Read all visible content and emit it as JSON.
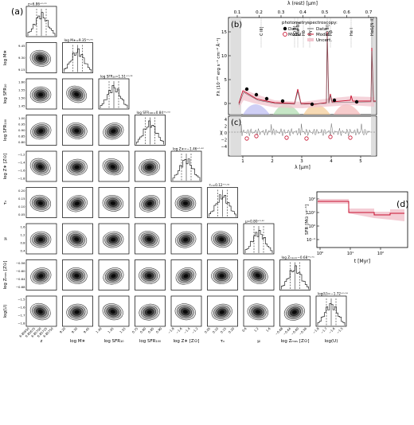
{
  "figure": {
    "corner": {
      "panel_label": "(a)",
      "params": [
        "z",
        "log M∗",
        "log SFR₁₀",
        "log SFR₁₀₀",
        "log Z∗ [Z⊙]",
        "τᵥ",
        "μ",
        "log Zₘₐₛ [Z⊙]",
        "log(U)"
      ],
      "diag_titles": [
        "z=6.86⁺⁰·⁰⁰",
        "log M∗=9.35⁺⁰·⁰⁵",
        "log SFR₁₀=1.51⁺⁰·⁰³",
        "log SFR₁₀₀=0.84⁺⁰·⁰³",
        "log Z∗=−1.46⁺⁰·¹⁰",
        "τᵥ=0.12⁺⁰·⁰²",
        "μ=0.80⁺⁰·¹⁰",
        "log Zₘₐₛ=−0.68⁺⁰·⁰¹",
        "log(U)=−1.72⁺⁰·⁰⁴"
      ],
      "bottom_ticks": [
        [
          "6.85650",
          "6.85675",
          "6.85700",
          "6.85725",
          "6.85750"
        ],
        [
          "9.20",
          "9.30",
          "9.45"
        ],
        [
          "1.40",
          "1.45",
          "1.55"
        ],
        [
          "0.75",
          "0.80",
          "0.85",
          "0.90"
        ],
        [
          "−1.8",
          "−1.6",
          "−1.4",
          "−1.2"
        ],
        [
          "0.05",
          "0.10",
          "0.15",
          "0.20"
        ],
        [
          "0.6",
          "1.2",
          "1.6"
        ],
        [
          "−0.68",
          "−0.64",
          "−0.60",
          "−0.56"
        ],
        [
          "−1.8",
          "−1.7",
          "−1.6",
          "−1.5"
        ]
      ],
      "left_ticks": [
        [],
        [
          "9.45",
          "9.30",
          "9.15"
        ],
        [
          "1.60",
          "1.55",
          "1.50",
          "1.45"
        ],
        [
          "1.00",
          "0.95",
          "0.90",
          "0.85",
          "0.80"
        ],
        [
          "−1.2",
          "−1.4",
          "−1.6",
          "−1.8"
        ],
        [
          "0.20",
          "0.15",
          "0.10",
          "0.05"
        ],
        [
          "1.6",
          "1.2",
          "0.8",
          "0.4"
        ],
        [
          "−0.56",
          "−0.60",
          "−0.64",
          "−0.68"
        ],
        [
          "−1.5",
          "−1.6",
          "−1.7",
          "−1.8"
        ]
      ]
    },
    "sed": {
      "panel_label": "(b)",
      "top_axis_label": "λ (rest) [μm]",
      "top_ticks": [
        "0.1",
        "0.2",
        "0.3",
        "0.4",
        "0.5",
        "0.6",
        "0.7"
      ],
      "ylabel": "Fλ (10⁻²⁰ erg s⁻¹ cm⁻² Å⁻¹)",
      "yticks": [
        "15",
        "10",
        "5",
        "0"
      ],
      "lines": [
        "C III]",
        "[O II]",
        "[Ne III]",
        "Hδ",
        "Hγ",
        "[O III]",
        "Hβ",
        "He I",
        "Hα&[N II]"
      ],
      "legend": {
        "photometry_title": "photometry:",
        "photometry_items": [
          "Data",
          "Model"
        ],
        "spectroscopy_title": "spectroscopy:",
        "spectroscopy_items": [
          "Data",
          "Model",
          "Uncert."
        ]
      },
      "colors": {
        "model": "#c8102e",
        "data_line": "#6b6b6b",
        "uncert": "#f2c4ce",
        "mask": "#d0d0d0"
      }
    },
    "resid": {
      "panel_label": "(c)",
      "ylabel": "χ",
      "yticks": [
        "4",
        "2",
        "0",
        "−2",
        "−4"
      ],
      "xticks": [
        "1",
        "2",
        "3",
        "4",
        "5"
      ],
      "xlabel": "λ [μm]"
    },
    "sfh": {
      "panel_label": "(d)",
      "ylabel": "SFR [M⊙ yr⁻¹]",
      "yticks": [
        "10²",
        "10¹",
        "10⁰",
        "10⁻¹"
      ],
      "xticks": [
        "10⁰",
        "10¹",
        "10²"
      ],
      "xlabel": "t [Myr]"
    }
  }
}
